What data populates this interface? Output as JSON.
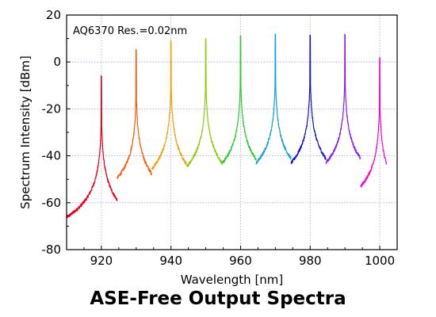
{
  "caption": "ASE-Free Output Spectra",
  "chart_data": {
    "type": "line",
    "title": "",
    "xlabel": "Wavelength [nm]",
    "ylabel": "Spectrum Intensity [dBm]",
    "annotation": "AQ6370 Res.=0.02nm",
    "xlim": [
      910,
      1005
    ],
    "ylim": [
      -80,
      20
    ],
    "x_ticks": [
      920,
      940,
      960,
      980,
      1000
    ],
    "y_ticks": [
      20,
      0,
      -20,
      -40,
      -60,
      -80
    ],
    "x_tick_labels": [
      "920",
      "940",
      "960",
      "980",
      "1000"
    ],
    "y_tick_labels": [
      "20",
      "0",
      "-20",
      "-40",
      "-60",
      "-80"
    ],
    "grid": true,
    "legend": "none",
    "series": [
      {
        "peak_nm": 920,
        "peak_dbm": -6,
        "span": [
          910,
          924.5
        ],
        "color": "#e6001e"
      },
      {
        "peak_nm": 930,
        "peak_dbm": 5,
        "span": [
          924.5,
          934.5
        ],
        "color": "#ff5a00"
      },
      {
        "peak_nm": 940,
        "peak_dbm": 9,
        "span": [
          934.5,
          944.5
        ],
        "color": "#f0a000"
      },
      {
        "peak_nm": 950,
        "peak_dbm": 10,
        "span": [
          944.5,
          954.5
        ],
        "color": "#8ccc00"
      },
      {
        "peak_nm": 960,
        "peak_dbm": 11,
        "span": [
          954.5,
          964.5
        ],
        "color": "#2cc82c"
      },
      {
        "peak_nm": 970,
        "peak_dbm": 11.5,
        "span": [
          964.5,
          974.5
        ],
        "color": "#14a0dc"
      },
      {
        "peak_nm": 980,
        "peak_dbm": 11.5,
        "span": [
          974.5,
          984.5
        ],
        "color": "#1414c8"
      },
      {
        "peak_nm": 990,
        "peak_dbm": 11.5,
        "span": [
          984.5,
          994.5
        ],
        "color": "#8c1ede"
      },
      {
        "peak_nm": 1000,
        "peak_dbm": 1.5,
        "span": [
          994.5,
          1002
        ],
        "color": "#ff00c8"
      }
    ]
  }
}
